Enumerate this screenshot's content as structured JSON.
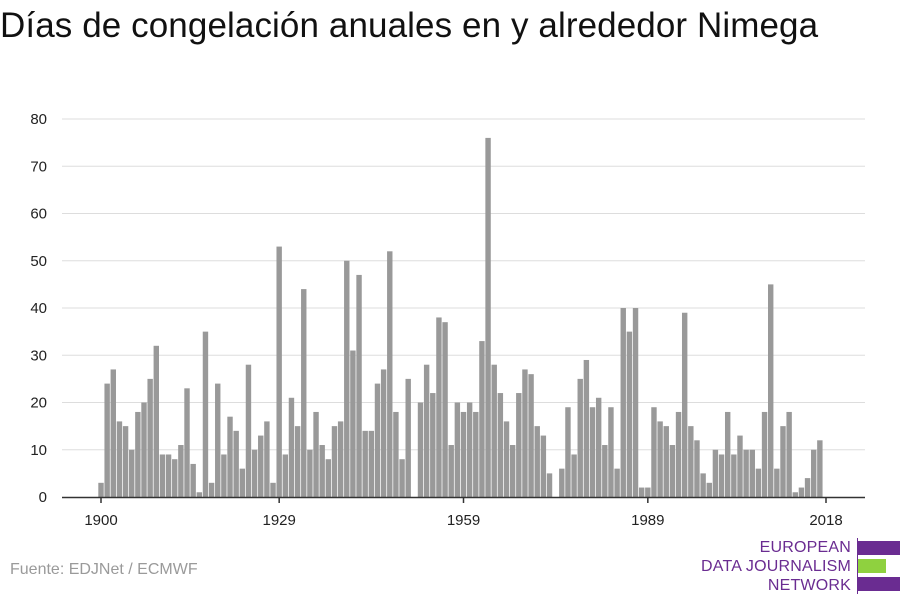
{
  "title": "Días de congelación anuales en y alrededor Nimega",
  "source": "Fuente: EDJNet / ECMWF",
  "logo": {
    "line1": "EUROPEAN",
    "line2": "DATA JOURNALISM",
    "line3": "NETWORK",
    "colors": {
      "purple": "#6a2c91",
      "green": "#8fd13f"
    }
  },
  "colors": {
    "bar": "#999999",
    "grid": "#dddddd",
    "axis": "#333333"
  },
  "chart_data": {
    "type": "bar",
    "title": "Días de congelación anuales en y alrededor Nimega",
    "xlabel": "",
    "ylabel": "",
    "ylim": [
      0,
      80
    ],
    "yticks": [
      0,
      10,
      20,
      30,
      40,
      50,
      60,
      70,
      80
    ],
    "xticks": [
      1900,
      1929,
      1959,
      1989,
      2018
    ],
    "xlim": [
      1900,
      2018
    ],
    "grid": true,
    "x": [
      1900,
      1901,
      1902,
      1903,
      1904,
      1905,
      1906,
      1907,
      1908,
      1909,
      1910,
      1911,
      1912,
      1913,
      1914,
      1915,
      1916,
      1917,
      1918,
      1919,
      1920,
      1921,
      1922,
      1923,
      1924,
      1925,
      1926,
      1927,
      1928,
      1929,
      1930,
      1931,
      1932,
      1933,
      1934,
      1935,
      1936,
      1937,
      1938,
      1939,
      1940,
      1941,
      1942,
      1943,
      1944,
      1945,
      1946,
      1947,
      1948,
      1949,
      1950,
      1951,
      1952,
      1953,
      1954,
      1955,
      1956,
      1957,
      1958,
      1959,
      1960,
      1961,
      1962,
      1963,
      1964,
      1965,
      1966,
      1967,
      1968,
      1969,
      1970,
      1971,
      1972,
      1973,
      1974,
      1975,
      1976,
      1977,
      1978,
      1979,
      1980,
      1981,
      1982,
      1983,
      1984,
      1985,
      1986,
      1987,
      1988,
      1989,
      1990,
      1991,
      1992,
      1993,
      1994,
      1995,
      1996,
      1997,
      1998,
      1999,
      2000,
      2001,
      2002,
      2003,
      2004,
      2005,
      2006,
      2007,
      2008,
      2009,
      2010,
      2011,
      2012,
      2013,
      2014,
      2015,
      2016,
      2017,
      2018
    ],
    "values": [
      3,
      24,
      27,
      16,
      15,
      10,
      18,
      20,
      25,
      32,
      9,
      9,
      8,
      11,
      23,
      7,
      1,
      35,
      3,
      24,
      9,
      17,
      14,
      6,
      28,
      10,
      13,
      16,
      3,
      53,
      9,
      21,
      15,
      44,
      10,
      18,
      11,
      8,
      15,
      16,
      50,
      31,
      47,
      14,
      14,
      24,
      27,
      52,
      18,
      8,
      25,
      0,
      20,
      28,
      22,
      38,
      37,
      11,
      20,
      18,
      20,
      18,
      33,
      76,
      28,
      22,
      16,
      11,
      22,
      27,
      26,
      15,
      13,
      5,
      0,
      6,
      19,
      9,
      25,
      29,
      19,
      21,
      11,
      19,
      6,
      40,
      35,
      40,
      2,
      2,
      19,
      16,
      15,
      11,
      18,
      39,
      15,
      12,
      5,
      3,
      10,
      9,
      18,
      9,
      13,
      10,
      10,
      6,
      18,
      45,
      6,
      15,
      18,
      1,
      2,
      4,
      10,
      12,
      0
    ]
  }
}
